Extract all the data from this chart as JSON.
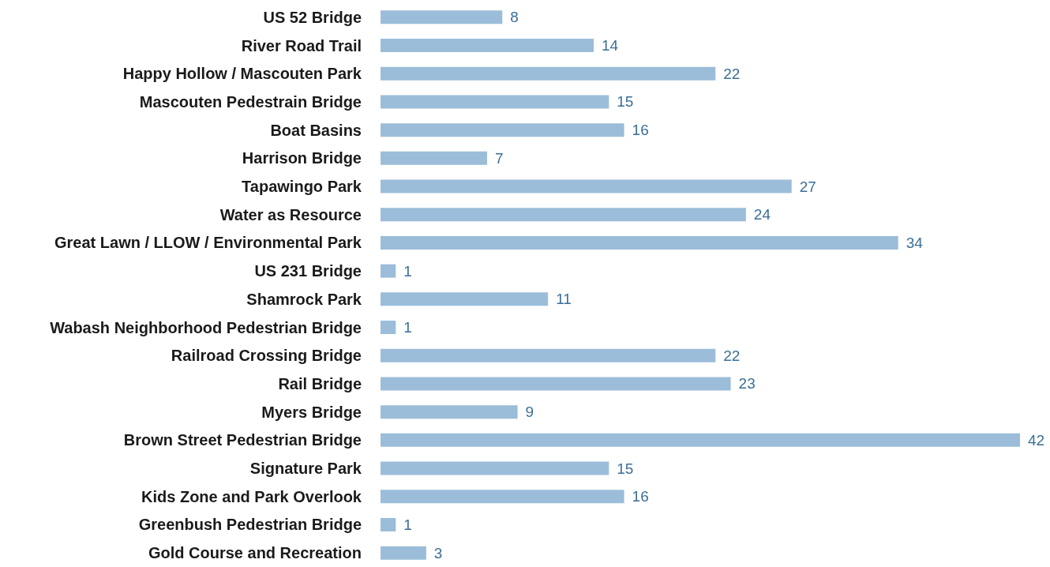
{
  "chart_data": {
    "type": "bar",
    "orientation": "horizontal",
    "data_labels": true,
    "color": "#9bbdd9",
    "categories": [
      "US 52 Bridge",
      "River Road Trail",
      "Happy Hollow / Mascouten Park",
      "Mascouten Pedestrain Bridge",
      "Boat Basins",
      "Harrison Bridge",
      "Tapawingo Park",
      "Water as Resource",
      "Great Lawn / LLOW / Environmental Park",
      "US 231 Bridge",
      "Shamrock Park",
      "Wabash Neighborhood Pedestrian Bridge",
      "Railroad Crossing Bridge",
      "Rail Bridge",
      "Myers Bridge",
      "Brown Street Pedestrian Bridge",
      "Signature Park",
      "Kids Zone and Park Overlook",
      "Greenbush Pedestrian Bridge",
      "Gold Course and Recreation"
    ],
    "values": [
      8,
      14,
      22,
      15,
      16,
      7,
      27,
      24,
      34,
      1,
      11,
      1,
      22,
      23,
      9,
      42,
      15,
      16,
      1,
      3
    ]
  }
}
